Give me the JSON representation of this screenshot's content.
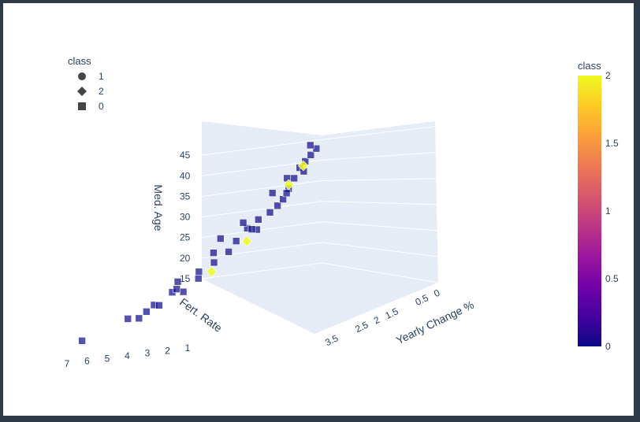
{
  "chart_data": {
    "type": "scatter",
    "subtype": "3d",
    "title": "",
    "axes": {
      "x": {
        "label": "Yearly Change %",
        "ticks": [
          "0",
          "0.5",
          "1.5",
          "2",
          "2.5",
          "3.5"
        ]
      },
      "y": {
        "label": "Fert. Rate",
        "ticks": [
          "1",
          "2",
          "3",
          "4",
          "5",
          "6",
          "7"
        ]
      },
      "z": {
        "label": "Med. Age",
        "ticks": [
          "15",
          "20",
          "25",
          "30",
          "35",
          "40",
          "45"
        ],
        "range": [
          15,
          46
        ]
      }
    },
    "legend": {
      "title": "class",
      "placement": "top-left",
      "items": [
        {
          "label": "1",
          "symbol": "circle"
        },
        {
          "label": "2",
          "symbol": "diamond"
        },
        {
          "label": "0",
          "symbol": "square"
        }
      ]
    },
    "colorbar": {
      "title": "class",
      "ticks": [
        "2",
        "1.5",
        "1",
        "0.5",
        "0"
      ],
      "range": [
        0,
        2
      ],
      "colors": [
        "#0d0887",
        "#46039f",
        "#7201a8",
        "#9c179e",
        "#bd3786",
        "#d8576b",
        "#ed7953",
        "#fb9f3a",
        "#fdca26",
        "#f0f921"
      ]
    },
    "marker_colors": {
      "class0": "#0d0887",
      "class2": "#f0f921",
      "outline": "#ffffff"
    },
    "grid": true,
    "scene_background": "#e5ecf6",
    "series": [
      {
        "name": "0",
        "symbol": "square",
        "color": "#0d0887",
        "points": [
          [
            3.5,
            6.8,
            17
          ],
          [
            3.0,
            5.4,
            19
          ],
          [
            2.8,
            5.2,
            18
          ],
          [
            2.6,
            4.8,
            20
          ],
          [
            2.4,
            4.9,
            19
          ],
          [
            2.2,
            4.6,
            21
          ],
          [
            2.0,
            4.4,
            20
          ],
          [
            1.8,
            4.0,
            22
          ],
          [
            2.1,
            4.5,
            23
          ],
          [
            1.6,
            3.6,
            27
          ],
          [
            1.3,
            3.0,
            28
          ],
          [
            1.1,
            2.8,
            30
          ],
          [
            1.0,
            2.5,
            29
          ],
          [
            0.9,
            2.6,
            31
          ],
          [
            0.7,
            2.0,
            33
          ],
          [
            0.6,
            1.9,
            34
          ],
          [
            0.5,
            1.8,
            36
          ],
          [
            0.4,
            1.7,
            38
          ],
          [
            0.3,
            1.6,
            40
          ],
          [
            0.2,
            1.5,
            41
          ],
          [
            0.1,
            1.4,
            42
          ],
          [
            0.0,
            1.3,
            43
          ],
          [
            0.0,
            1.6,
            44
          ],
          [
            0.3,
            1.4,
            39
          ],
          [
            0.5,
            1.9,
            35
          ],
          [
            0.8,
            2.2,
            32
          ],
          [
            1.2,
            2.4,
            30
          ],
          [
            1.4,
            3.2,
            26
          ],
          [
            1.7,
            3.4,
            25
          ],
          [
            1.9,
            3.8,
            24
          ],
          [
            2.3,
            4.2,
            22
          ],
          [
            2.7,
            5.0,
            19
          ],
          [
            1.5,
            2.3,
            33
          ],
          [
            0.9,
            1.9,
            37
          ],
          [
            0.6,
            1.7,
            39
          ],
          [
            1.8,
            2.9,
            31
          ]
        ]
      },
      {
        "name": "2",
        "symbol": "diamond",
        "color": "#f0f921",
        "points": [
          [
            2.0,
            3.0,
            24
          ],
          [
            1.4,
            2.3,
            28
          ],
          [
            0.5,
            1.8,
            37
          ],
          [
            0.2,
            1.6,
            40
          ]
        ]
      }
    ]
  }
}
